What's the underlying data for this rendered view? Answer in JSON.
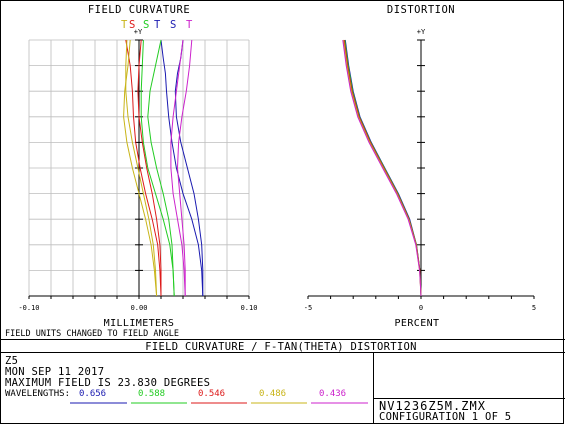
{
  "colors": {
    "w1": "#1a1ab0",
    "w2": "#22cc22",
    "w3": "#dd1a1a",
    "w4": "#c8b418",
    "w5": "#cc22cc",
    "grid": "#bdbdbd",
    "text": "#000000"
  },
  "fc": {
    "title": "FIELD CURVATURE",
    "yaxis": "+Y",
    "ts": [
      "T",
      "S",
      "S",
      "T",
      "S",
      "T"
    ],
    "xticks": [
      "-0.10",
      "0.00",
      "0.10"
    ],
    "xlabel": "MILLIMETERS",
    "note": "FIELD UNITS CHANGED TO FIELD ANGLE"
  },
  "dist": {
    "title": "DISTORTION",
    "yaxis": "+Y",
    "xticks": [
      "-5",
      "0",
      "5"
    ],
    "xlabel": "PERCENT"
  },
  "banner": "FIELD CURVATURE / F-TAN(THETA) DISTORTION",
  "info": {
    "lens": "Z5",
    "date": "MON SEP 11 2017",
    "field": "MAXIMUM FIELD IS 23.830 DEGREES",
    "wl_label": "WAVELENGTHS:",
    "wavelengths": [
      "0.656",
      "0.588",
      "0.546",
      "0.486",
      "0.436"
    ]
  },
  "file": {
    "name": "NV1236Z5M.ZMX",
    "config": "CONFIGURATION 1 OF 5"
  },
  "chart_data": [
    {
      "type": "line",
      "title": "FIELD CURVATURE",
      "xlabel": "MILLIMETERS",
      "xlim": [
        -0.1,
        0.1
      ],
      "x_tick_labels": [
        "-0.10",
        "0.00",
        "0.10"
      ],
      "ylim": [
        0,
        1
      ],
      "series": [
        {
          "name": "0.656",
          "color": "#1a1ab0",
          "curves": [
            {
              "x": [
                0.058,
                0.058,
                0.057,
                0.054,
                0.05,
                0.044,
                0.038,
                0.034,
                0.033,
                0.035,
                0.038,
                0.04
              ],
              "y": [
                0,
                0.1,
                0.2,
                0.3,
                0.4,
                0.5,
                0.6,
                0.7,
                0.8,
                0.87,
                0.93,
                1.0
              ]
            },
            {
              "x": [
                0.058,
                0.057,
                0.054,
                0.048,
                0.04,
                0.034,
                0.03,
                0.027,
                0.025,
                0.024,
                0.022,
                0.02
              ],
              "y": [
                0,
                0.1,
                0.2,
                0.3,
                0.4,
                0.5,
                0.6,
                0.7,
                0.8,
                0.87,
                0.93,
                1.0
              ]
            }
          ]
        },
        {
          "name": "0.588",
          "color": "#22cc22",
          "curves": [
            {
              "x": [
                0.032,
                0.031,
                0.03,
                0.027,
                0.022,
                0.016,
                0.011,
                0.008,
                0.01,
                0.015,
                0.02
              ],
              "y": [
                0,
                0.1,
                0.2,
                0.3,
                0.4,
                0.5,
                0.6,
                0.7,
                0.8,
                0.9,
                1.0
              ]
            },
            {
              "x": [
                0.032,
                0.031,
                0.028,
                0.022,
                0.015,
                0.008,
                0.004,
                0.002,
                0.002,
                0.003,
                0.004
              ],
              "y": [
                0,
                0.1,
                0.2,
                0.3,
                0.4,
                0.5,
                0.6,
                0.7,
                0.8,
                0.9,
                1.0
              ]
            }
          ]
        },
        {
          "name": "0.546",
          "color": "#dd1a1a",
          "curves": [
            {
              "x": [
                0.02,
                0.02,
                0.019,
                0.016,
                0.012,
                0.007,
                0.003,
                0.0,
                -0.001,
                0.0,
                0.002
              ],
              "y": [
                0,
                0.1,
                0.2,
                0.3,
                0.4,
                0.5,
                0.6,
                0.7,
                0.8,
                0.9,
                1.0
              ]
            },
            {
              "x": [
                0.02,
                0.019,
                0.017,
                0.012,
                0.006,
                0.001,
                -0.003,
                -0.005,
                -0.006,
                -0.008,
                -0.012
              ],
              "y": [
                0,
                0.1,
                0.2,
                0.3,
                0.4,
                0.5,
                0.6,
                0.7,
                0.8,
                0.9,
                1.0
              ]
            }
          ]
        },
        {
          "name": "0.486",
          "color": "#c8b418",
          "curves": [
            {
              "x": [
                0.016,
                0.015,
                0.013,
                0.009,
                0.004,
                -0.001,
                -0.006,
                -0.01,
                -0.012,
                -0.012,
                -0.011
              ],
              "y": [
                0,
                0.1,
                0.2,
                0.3,
                0.4,
                0.5,
                0.6,
                0.7,
                0.8,
                0.9,
                1.0
              ]
            },
            {
              "x": [
                0.016,
                0.014,
                0.011,
                0.006,
                0.0,
                -0.006,
                -0.011,
                -0.014,
                -0.013,
                -0.01,
                -0.008
              ],
              "y": [
                0,
                0.1,
                0.2,
                0.3,
                0.4,
                0.5,
                0.6,
                0.7,
                0.8,
                0.9,
                1.0
              ]
            }
          ]
        },
        {
          "name": "0.436",
          "color": "#cc22cc",
          "curves": [
            {
              "x": [
                0.042,
                0.042,
                0.041,
                0.039,
                0.037,
                0.035,
                0.036,
                0.039,
                0.043,
                0.046,
                0.048
              ],
              "y": [
                0,
                0.1,
                0.2,
                0.3,
                0.4,
                0.5,
                0.6,
                0.7,
                0.8,
                0.9,
                1.0
              ]
            },
            {
              "x": [
                0.042,
                0.041,
                0.039,
                0.035,
                0.031,
                0.029,
                0.029,
                0.031,
                0.034,
                0.037,
                0.04
              ],
              "y": [
                0,
                0.1,
                0.2,
                0.3,
                0.4,
                0.5,
                0.6,
                0.7,
                0.8,
                0.9,
                1.0
              ]
            }
          ]
        }
      ]
    },
    {
      "type": "line",
      "title": "DISTORTION",
      "xlabel": "PERCENT",
      "xlim": [
        -5,
        5
      ],
      "x_tick_labels": [
        "-5",
        "0",
        "5"
      ],
      "ylim": [
        0,
        1
      ],
      "series": [
        {
          "name": "0.656",
          "color": "#1a1ab0",
          "x": [
            0.0,
            -0.05,
            -0.2,
            -0.5,
            -1.0,
            -1.6,
            -2.2,
            -2.7,
            -3.0,
            -3.2,
            -3.35
          ],
          "y": [
            0,
            0.1,
            0.2,
            0.3,
            0.4,
            0.5,
            0.6,
            0.7,
            0.8,
            0.9,
            1.0
          ]
        },
        {
          "name": "0.588",
          "color": "#22cc22",
          "x": [
            0.0,
            -0.05,
            -0.2,
            -0.52,
            -1.02,
            -1.62,
            -2.22,
            -2.72,
            -3.02,
            -3.22,
            -3.37
          ],
          "y": [
            0,
            0.1,
            0.2,
            0.3,
            0.4,
            0.5,
            0.6,
            0.7,
            0.8,
            0.9,
            1.0
          ]
        },
        {
          "name": "0.546",
          "color": "#dd1a1a",
          "x": [
            0.0,
            -0.05,
            -0.21,
            -0.53,
            -1.04,
            -1.64,
            -2.24,
            -2.74,
            -3.05,
            -3.25,
            -3.4
          ],
          "y": [
            0,
            0.1,
            0.2,
            0.3,
            0.4,
            0.5,
            0.6,
            0.7,
            0.8,
            0.9,
            1.0
          ]
        },
        {
          "name": "0.486",
          "color": "#c8b418",
          "x": [
            0.0,
            -0.06,
            -0.22,
            -0.55,
            -1.06,
            -1.67,
            -2.27,
            -2.77,
            -3.08,
            -3.28,
            -3.43
          ],
          "y": [
            0,
            0.1,
            0.2,
            0.3,
            0.4,
            0.5,
            0.6,
            0.7,
            0.8,
            0.9,
            1.0
          ]
        },
        {
          "name": "0.436",
          "color": "#cc22cc",
          "x": [
            0.0,
            -0.06,
            -0.23,
            -0.57,
            -1.09,
            -1.7,
            -2.3,
            -2.8,
            -3.11,
            -3.31,
            -3.46
          ],
          "y": [
            0,
            0.1,
            0.2,
            0.3,
            0.4,
            0.5,
            0.6,
            0.7,
            0.8,
            0.9,
            1.0
          ]
        }
      ]
    }
  ]
}
